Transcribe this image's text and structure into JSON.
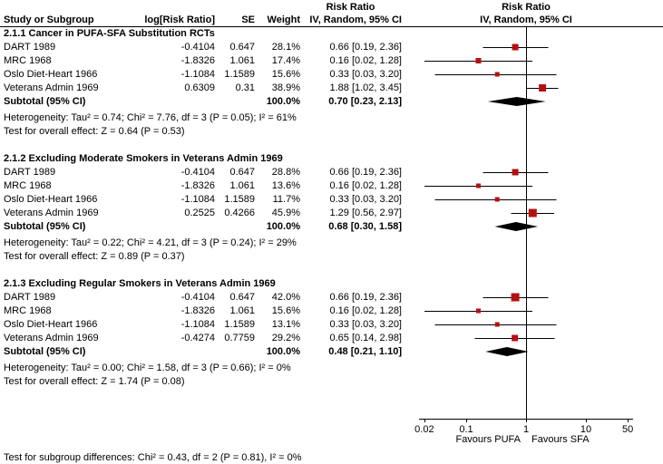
{
  "header": {
    "study": "Study or Subgroup",
    "log_rr": "log[Risk Ratio]",
    "se": "SE",
    "weight": "Weight",
    "effect_title": "Risk Ratio",
    "effect_sub": "IV, Random, 95% CI",
    "plot_title": "Risk Ratio",
    "plot_sub": "IV, Random, 95% CI"
  },
  "colors": {
    "square": "#b31212",
    "line": "#000000",
    "diamond": "#000000",
    "axis": "#000000"
  },
  "chart_data": {
    "type": "forest",
    "effect_measure": "Risk Ratio",
    "model": "IV, Random, 95% CI",
    "x_scale": "log",
    "x_ticks": [
      0.02,
      0.1,
      1,
      10,
      50
    ],
    "x_tick_labels": [
      "0.02",
      "0.1",
      "1",
      "10",
      "50"
    ],
    "null_value": 1,
    "favours_left": "Favours PUFA",
    "favours_right": "Favours SFA",
    "groups": [
      {
        "title": "2.1.1 Cancer in PUFA-SFA Substitution RCTs",
        "studies": [
          {
            "name": "DART 1989",
            "log_rr": "-0.4104",
            "se": "0.647",
            "weight": "28.1%",
            "ci": "0.66 [0.19, 2.36]",
            "est": 0.66,
            "lo": 0.19,
            "hi": 2.36,
            "w": 28.1
          },
          {
            "name": "MRC 1968",
            "log_rr": "-1.8326",
            "se": "1.061",
            "weight": "17.4%",
            "ci": "0.16 [0.02, 1.28]",
            "est": 0.16,
            "lo": 0.02,
            "hi": 1.28,
            "w": 17.4
          },
          {
            "name": "Oslo Diet-Heart 1966",
            "log_rr": "-1.1084",
            "se": "1.1589",
            "weight": "15.6%",
            "ci": "0.33 [0.03, 3.20]",
            "est": 0.33,
            "lo": 0.03,
            "hi": 3.2,
            "w": 15.6
          },
          {
            "name": "Veterans Admin 1969",
            "log_rr": "0.6309",
            "se": "0.31",
            "weight": "38.9%",
            "ci": "1.88 [1.02, 3.45]",
            "est": 1.88,
            "lo": 1.02,
            "hi": 3.45,
            "w": 38.9
          }
        ],
        "subtotal": {
          "label": "Subtotal (95% CI)",
          "weight": "100.0%",
          "ci": "0.70 [0.23, 2.13]",
          "est": 0.7,
          "lo": 0.23,
          "hi": 2.13
        },
        "heterogeneity": "Heterogeneity: Tau² = 0.74; Chi² = 7.76, df = 3 (P = 0.05); I² = 61%",
        "overall_effect": "Test for overall effect: Z = 0.64 (P = 0.53)"
      },
      {
        "title": "2.1.2 Excluding Moderate Smokers in Veterans Admin 1969",
        "studies": [
          {
            "name": "DART 1989",
            "log_rr": "-0.4104",
            "se": "0.647",
            "weight": "28.8%",
            "ci": "0.66 [0.19, 2.36]",
            "est": 0.66,
            "lo": 0.19,
            "hi": 2.36,
            "w": 28.8
          },
          {
            "name": "MRC 1968",
            "log_rr": "-1.8326",
            "se": "1.061",
            "weight": "13.6%",
            "ci": "0.16 [0.02, 1.28]",
            "est": 0.16,
            "lo": 0.02,
            "hi": 1.28,
            "w": 13.6
          },
          {
            "name": "Oslo Diet-Heart 1966",
            "log_rr": "-1.1084",
            "se": "1.1589",
            "weight": "11.7%",
            "ci": "0.33 [0.03, 3.20]",
            "est": 0.33,
            "lo": 0.03,
            "hi": 3.2,
            "w": 11.7
          },
          {
            "name": "Veterans Admin 1969",
            "log_rr": "0.2525",
            "se": "0.4266",
            "weight": "45.9%",
            "ci": "1.29 [0.56, 2.97]",
            "est": 1.29,
            "lo": 0.56,
            "hi": 2.97,
            "w": 45.9
          }
        ],
        "subtotal": {
          "label": "Subtotal (95% CI)",
          "weight": "100.0%",
          "ci": "0.68 [0.30, 1.58]",
          "est": 0.68,
          "lo": 0.3,
          "hi": 1.58
        },
        "heterogeneity": "Heterogeneity: Tau² = 0.22; Chi² = 4.21, df = 3 (P = 0.24); I² = 29%",
        "overall_effect": "Test for overall effect: Z = 0.89 (P = 0.37)"
      },
      {
        "title": "2.1.3 Excluding Regular Smokers in Veterans Admin 1969",
        "studies": [
          {
            "name": "DART 1989",
            "log_rr": "-0.4104",
            "se": "0.647",
            "weight": "42.0%",
            "ci": "0.66 [0.19, 2.36]",
            "est": 0.66,
            "lo": 0.19,
            "hi": 2.36,
            "w": 42.0
          },
          {
            "name": "MRC 1968",
            "log_rr": "-1.8326",
            "se": "1.061",
            "weight": "15.6%",
            "ci": "0.16 [0.02, 1.28]",
            "est": 0.16,
            "lo": 0.02,
            "hi": 1.28,
            "w": 15.6
          },
          {
            "name": "Oslo Diet-Heart 1966",
            "log_rr": "-1.1084",
            "se": "1.1589",
            "weight": "13.1%",
            "ci": "0.33 [0.03, 3.20]",
            "est": 0.33,
            "lo": 0.03,
            "hi": 3.2,
            "w": 13.1
          },
          {
            "name": "Veterans Admin 1969",
            "log_rr": "-0.4274",
            "se": "0.7759",
            "weight": "29.2%",
            "ci": "0.65 [0.14, 2.98]",
            "est": 0.65,
            "lo": 0.14,
            "hi": 2.98,
            "w": 29.2
          }
        ],
        "subtotal": {
          "label": "Subtotal (95% CI)",
          "weight": "100.0%",
          "ci": "0.48 [0.21, 1.10]",
          "est": 0.48,
          "lo": 0.21,
          "hi": 1.1
        },
        "heterogeneity": "Heterogeneity: Tau² = 0.00; Chi² = 1.58, df = 3 (P = 0.66); I² = 0%",
        "overall_effect": "Test for overall effect: Z = 1.74 (P = 0.08)"
      }
    ],
    "subgroup_test": "Test for subgroup differences: Chi² = 0.43, df = 2 (P = 0.81), I² = 0%"
  }
}
